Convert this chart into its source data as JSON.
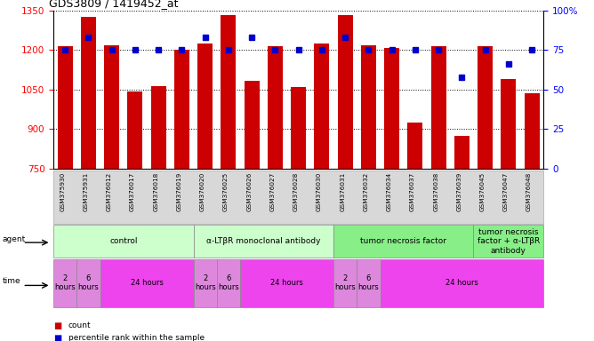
{
  "title": "GDS3809 / 1419452_at",
  "samples": [
    "GSM375930",
    "GSM375931",
    "GSM376012",
    "GSM376017",
    "GSM376018",
    "GSM376019",
    "GSM376020",
    "GSM376025",
    "GSM376026",
    "GSM376027",
    "GSM376028",
    "GSM376030",
    "GSM376031",
    "GSM376032",
    "GSM376034",
    "GSM376037",
    "GSM376038",
    "GSM376039",
    "GSM376045",
    "GSM376047",
    "GSM376048"
  ],
  "counts": [
    1215,
    1325,
    1217,
    1044,
    1063,
    1200,
    1224,
    1330,
    1083,
    1215,
    1061,
    1224,
    1330,
    1217,
    1208,
    924,
    1215,
    875,
    1215,
    1088,
    1035
  ],
  "percentiles": [
    75,
    83,
    75,
    75,
    75,
    75,
    83,
    75,
    83,
    75,
    75,
    75,
    83,
    75,
    75,
    75,
    75,
    58,
    75,
    66,
    75
  ],
  "ylim_left": [
    750,
    1350
  ],
  "ylim_right": [
    0,
    100
  ],
  "yticks_left": [
    750,
    900,
    1050,
    1200,
    1350
  ],
  "yticks_right": [
    0,
    25,
    50,
    75,
    100
  ],
  "bar_color": "#cc0000",
  "dot_color": "#0000cc",
  "bar_bottom": 750,
  "agent_groups": [
    {
      "label": "control",
      "start": 0,
      "end": 5,
      "color": "#ccffcc"
    },
    {
      "label": "α-LTβR monoclonal antibody",
      "start": 6,
      "end": 11,
      "color": "#ccffcc"
    },
    {
      "label": "tumor necrosis factor",
      "start": 12,
      "end": 17,
      "color": "#88ee88"
    },
    {
      "label": "tumor necrosis\nfactor + α-LTβR\nantibody",
      "start": 18,
      "end": 20,
      "color": "#88ee88"
    }
  ],
  "time_groups": [
    {
      "label": "2\nhours",
      "start": 0,
      "end": 0,
      "color": "#dd88dd"
    },
    {
      "label": "6\nhours",
      "start": 1,
      "end": 1,
      "color": "#dd88dd"
    },
    {
      "label": "24 hours",
      "start": 2,
      "end": 5,
      "color": "#ee44ee"
    },
    {
      "label": "2\nhours",
      "start": 6,
      "end": 6,
      "color": "#dd88dd"
    },
    {
      "label": "6\nhours",
      "start": 7,
      "end": 7,
      "color": "#dd88dd"
    },
    {
      "label": "24 hours",
      "start": 8,
      "end": 11,
      "color": "#ee44ee"
    },
    {
      "label": "2\nhours",
      "start": 12,
      "end": 12,
      "color": "#dd88dd"
    },
    {
      "label": "6\nhours",
      "start": 13,
      "end": 13,
      "color": "#dd88dd"
    },
    {
      "label": "24 hours",
      "start": 14,
      "end": 20,
      "color": "#ee44ee"
    }
  ]
}
